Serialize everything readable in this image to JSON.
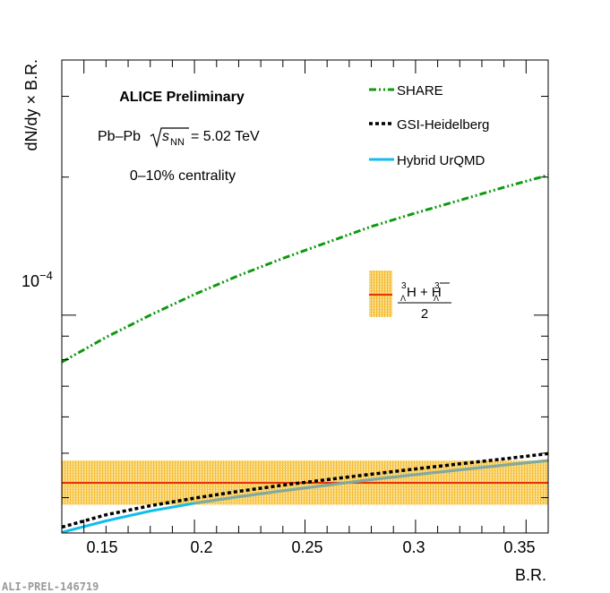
{
  "chart_data": {
    "type": "line",
    "title": "",
    "xlabel": "B.R.",
    "ylabel": "dN/dy × B.R.",
    "xlim": [
      0.14,
      0.36
    ],
    "ylim": [
      3.35e-05,
      0.00036
    ],
    "yscale": "log",
    "xticks": [
      0.15,
      0.2,
      0.25,
      0.3,
      0.35
    ],
    "xtick_labels": [
      "0.15",
      "0.2",
      "0.25",
      "0.3",
      "0.35"
    ],
    "ytick_major_label": "10",
    "ytick_major_exponent": "−4",
    "annotations": {
      "experiment": "ALICE Preliminary",
      "system_prefix": "Pb–Pb",
      "energy_symbol": "s",
      "energy_subscript": "NN",
      "energy_value": "= 5.02 TeV",
      "centrality": "0–10% centrality",
      "watermark": "ALI-PREL-146719"
    },
    "legend": {
      "position": "top-right",
      "entries": [
        "SHARE",
        "GSI-Heidelberg",
        "Hybrid UrQMD"
      ]
    },
    "measurement": {
      "label_numerator": "H + H",
      "label_superscript": "3",
      "label_subscript": "Λ",
      "label_denominator": "2",
      "value": 4.31e-05,
      "band_low": 3.86e-05,
      "band_high": 4.82e-05
    },
    "series": [
      {
        "name": "SHARE",
        "style": "dash-dot-dot",
        "color": "#0e9a0e",
        "x": [
          0.14,
          0.16,
          0.18,
          0.2,
          0.22,
          0.24,
          0.26,
          0.28,
          0.3,
          0.32,
          0.34,
          0.36
        ],
        "y": [
          7.9e-05,
          8.95e-05,
          0.0001,
          0.000111,
          0.000122,
          0.000133,
          0.000144,
          0.000156,
          0.000167,
          0.000178,
          0.00019,
          0.000202
        ]
      },
      {
        "name": "GSI-Heidelberg",
        "style": "dotted",
        "color": "#000000",
        "x": [
          0.14,
          0.16,
          0.18,
          0.2,
          0.22,
          0.24,
          0.26,
          0.28,
          0.3,
          0.32,
          0.34,
          0.36
        ],
        "y": [
          3.45e-05,
          3.67e-05,
          3.84e-05,
          3.99e-05,
          4.13e-05,
          4.26e-05,
          4.38e-05,
          4.5e-05,
          4.62e-05,
          4.74e-05,
          4.86e-05,
          4.99e-05
        ]
      },
      {
        "name": "Hybrid UrQMD",
        "style": "solid",
        "color": "#12bdec",
        "x": [
          0.14,
          0.16,
          0.18,
          0.2,
          0.22,
          0.24,
          0.26,
          0.28,
          0.3,
          0.32,
          0.34,
          0.36
        ],
        "y": [
          3.36e-05,
          3.56e-05,
          3.74e-05,
          3.89e-05,
          4.02e-05,
          4.14e-05,
          4.26e-05,
          4.38e-05,
          4.49e-05,
          4.6e-05,
          4.71e-05,
          4.82e-05
        ]
      }
    ]
  }
}
